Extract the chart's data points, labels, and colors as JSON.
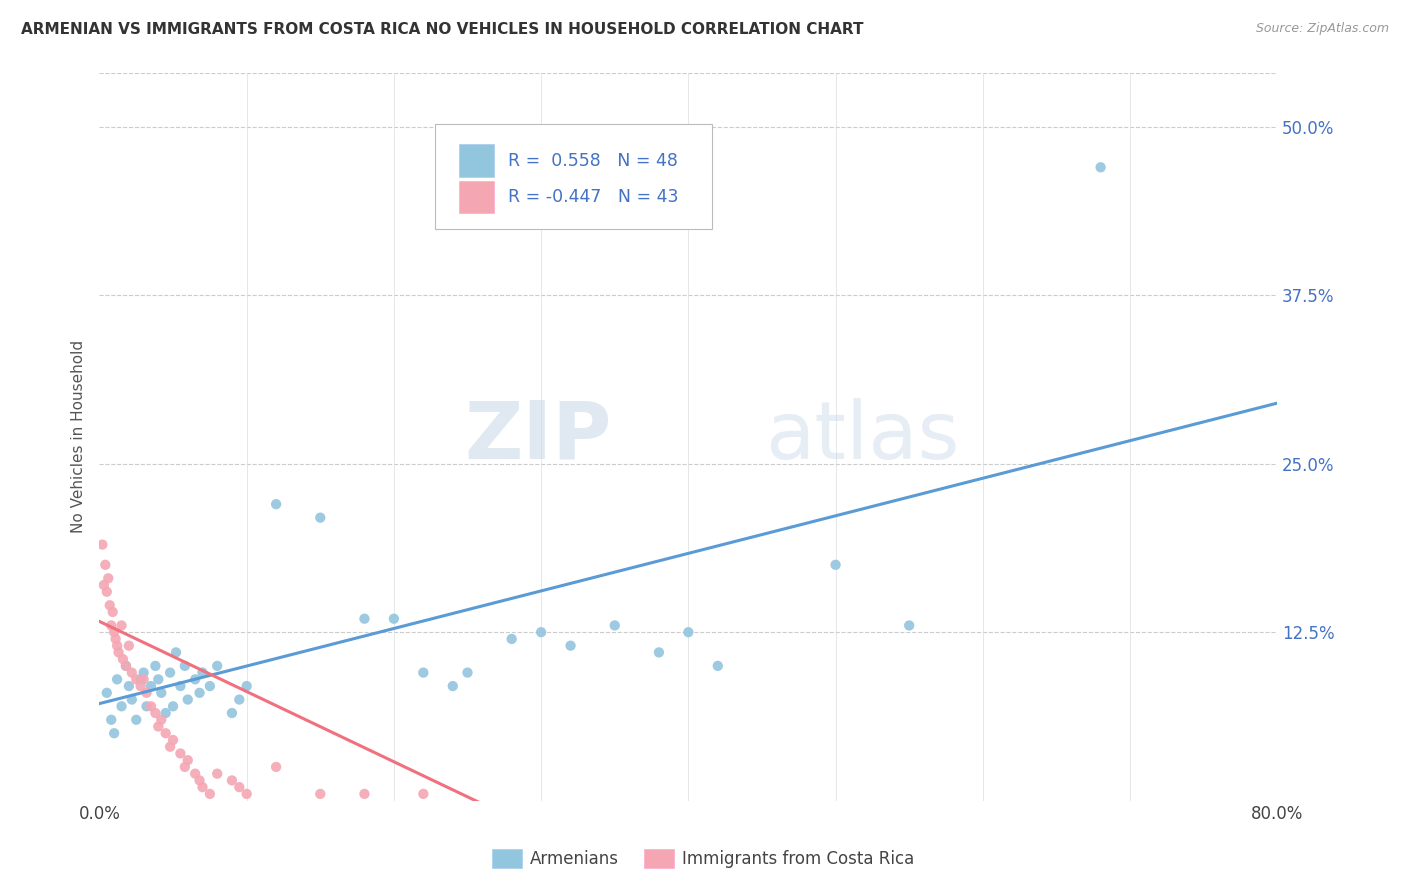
{
  "title": "ARMENIAN VS IMMIGRANTS FROM COSTA RICA NO VEHICLES IN HOUSEHOLD CORRELATION CHART",
  "source": "Source: ZipAtlas.com",
  "ylabel": "No Vehicles in Household",
  "ytick_labels": [
    "",
    "12.5%",
    "25.0%",
    "37.5%",
    "50.0%"
  ],
  "ytick_values": [
    0,
    0.125,
    0.25,
    0.375,
    0.5
  ],
  "xlim": [
    0.0,
    0.8
  ],
  "ylim": [
    0.0,
    0.54
  ],
  "armenian_R": 0.558,
  "armenian_N": 48,
  "costarica_R": -0.447,
  "costarica_N": 43,
  "armenian_color": "#92C5DE",
  "costarica_color": "#F4A7B3",
  "trendline_armenian_color": "#5B9BD5",
  "trendline_costarica_color": "#F1707E",
  "watermark_zip": "ZIP",
  "watermark_atlas": "atlas",
  "background_color": "#FFFFFF",
  "legend_text_color": "#4472C4",
  "armenians_scatter": [
    [
      0.005,
      0.08
    ],
    [
      0.008,
      0.06
    ],
    [
      0.01,
      0.05
    ],
    [
      0.012,
      0.09
    ],
    [
      0.015,
      0.07
    ],
    [
      0.018,
      0.1
    ],
    [
      0.02,
      0.085
    ],
    [
      0.022,
      0.075
    ],
    [
      0.025,
      0.06
    ],
    [
      0.028,
      0.09
    ],
    [
      0.03,
      0.095
    ],
    [
      0.032,
      0.07
    ],
    [
      0.035,
      0.085
    ],
    [
      0.038,
      0.1
    ],
    [
      0.04,
      0.09
    ],
    [
      0.042,
      0.08
    ],
    [
      0.045,
      0.065
    ],
    [
      0.048,
      0.095
    ],
    [
      0.05,
      0.07
    ],
    [
      0.052,
      0.11
    ],
    [
      0.055,
      0.085
    ],
    [
      0.058,
      0.1
    ],
    [
      0.06,
      0.075
    ],
    [
      0.065,
      0.09
    ],
    [
      0.068,
      0.08
    ],
    [
      0.07,
      0.095
    ],
    [
      0.075,
      0.085
    ],
    [
      0.08,
      0.1
    ],
    [
      0.09,
      0.065
    ],
    [
      0.095,
      0.075
    ],
    [
      0.1,
      0.085
    ],
    [
      0.12,
      0.22
    ],
    [
      0.15,
      0.21
    ],
    [
      0.18,
      0.135
    ],
    [
      0.2,
      0.135
    ],
    [
      0.22,
      0.095
    ],
    [
      0.24,
      0.085
    ],
    [
      0.25,
      0.095
    ],
    [
      0.28,
      0.12
    ],
    [
      0.3,
      0.125
    ],
    [
      0.32,
      0.115
    ],
    [
      0.35,
      0.13
    ],
    [
      0.38,
      0.11
    ],
    [
      0.4,
      0.125
    ],
    [
      0.42,
      0.1
    ],
    [
      0.5,
      0.175
    ],
    [
      0.55,
      0.13
    ],
    [
      0.68,
      0.47
    ]
  ],
  "costarica_scatter": [
    [
      0.002,
      0.19
    ],
    [
      0.003,
      0.16
    ],
    [
      0.004,
      0.175
    ],
    [
      0.005,
      0.155
    ],
    [
      0.006,
      0.165
    ],
    [
      0.007,
      0.145
    ],
    [
      0.008,
      0.13
    ],
    [
      0.009,
      0.14
    ],
    [
      0.01,
      0.125
    ],
    [
      0.011,
      0.12
    ],
    [
      0.012,
      0.115
    ],
    [
      0.013,
      0.11
    ],
    [
      0.015,
      0.13
    ],
    [
      0.016,
      0.105
    ],
    [
      0.018,
      0.1
    ],
    [
      0.02,
      0.115
    ],
    [
      0.022,
      0.095
    ],
    [
      0.025,
      0.09
    ],
    [
      0.028,
      0.085
    ],
    [
      0.03,
      0.09
    ],
    [
      0.032,
      0.08
    ],
    [
      0.035,
      0.07
    ],
    [
      0.038,
      0.065
    ],
    [
      0.04,
      0.055
    ],
    [
      0.042,
      0.06
    ],
    [
      0.045,
      0.05
    ],
    [
      0.048,
      0.04
    ],
    [
      0.05,
      0.045
    ],
    [
      0.055,
      0.035
    ],
    [
      0.058,
      0.025
    ],
    [
      0.06,
      0.03
    ],
    [
      0.065,
      0.02
    ],
    [
      0.068,
      0.015
    ],
    [
      0.07,
      0.01
    ],
    [
      0.075,
      0.005
    ],
    [
      0.08,
      0.02
    ],
    [
      0.09,
      0.015
    ],
    [
      0.095,
      0.01
    ],
    [
      0.1,
      0.005
    ],
    [
      0.12,
      0.025
    ],
    [
      0.15,
      0.005
    ],
    [
      0.18,
      0.005
    ],
    [
      0.22,
      0.005
    ]
  ],
  "armenian_trendline": [
    [
      0.0,
      0.072
    ],
    [
      0.8,
      0.295
    ]
  ],
  "costarica_trendline": [
    [
      0.0,
      0.133
    ],
    [
      0.265,
      -0.005
    ]
  ]
}
